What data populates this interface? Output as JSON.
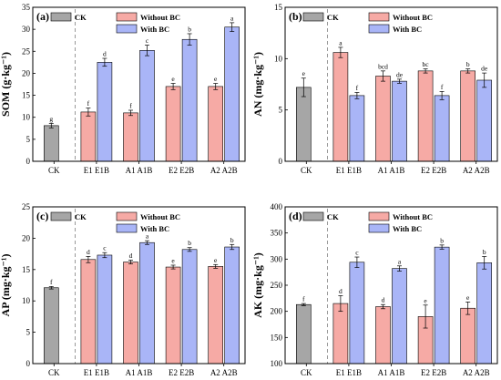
{
  "figure": {
    "colors": {
      "ck": "#a6a6a6",
      "without_bc": "#f6aaa5",
      "with_bc": "#a9b5f7",
      "frame": "#000000",
      "divider": "#808080"
    },
    "legend": {
      "ck": "CK",
      "without_bc": "Without BC",
      "with_bc": "With BC"
    }
  },
  "chart_data": [
    {
      "type": "bar",
      "panel_label": "(a)",
      "ylabel": "SOM (g·kg⁻¹)",
      "ylim": [
        0,
        35
      ],
      "yticks": [
        0,
        5,
        10,
        15,
        20,
        25,
        30,
        35
      ],
      "categories": [
        "CK",
        "E1 E1B",
        "A1 A1B",
        "E2 E2B",
        "A2 A2B"
      ],
      "series": [
        {
          "name": "CK",
          "values": [
            8.1,
            null,
            null,
            null,
            null
          ],
          "errors": [
            0.5,
            null,
            null,
            null,
            null
          ],
          "letters": [
            "g",
            null,
            null,
            null,
            null
          ]
        },
        {
          "name": "Without BC",
          "values": [
            null,
            11.2,
            11.0,
            17.0,
            17.0
          ],
          "errors": [
            null,
            0.9,
            0.6,
            0.7,
            0.7
          ],
          "letters": [
            null,
            "f",
            "f",
            "e",
            "e"
          ]
        },
        {
          "name": "With BC",
          "values": [
            null,
            22.5,
            25.2,
            27.7,
            30.5
          ],
          "errors": [
            null,
            0.9,
            1.2,
            1.3,
            1.0
          ],
          "letters": [
            null,
            "d",
            "c",
            "b",
            "a"
          ]
        }
      ]
    },
    {
      "type": "bar",
      "panel_label": "(b)",
      "ylabel": "AN (mg·kg⁻¹)",
      "ylim": [
        0,
        15
      ],
      "yticks": [
        0,
        5,
        10,
        15
      ],
      "categories": [
        "CK",
        "E1 E1B",
        "A1 A1B",
        "E2 E2B",
        "A2 A2B"
      ],
      "series": [
        {
          "name": "CK",
          "values": [
            7.2,
            null,
            null,
            null,
            null
          ],
          "errors": [
            0.9,
            null,
            null,
            null,
            null
          ],
          "letters": [
            "e",
            null,
            null,
            null,
            null
          ]
        },
        {
          "name": "Without BC",
          "values": [
            null,
            10.6,
            8.3,
            8.8,
            8.8
          ],
          "errors": [
            null,
            0.5,
            0.5,
            0.2,
            0.2
          ],
          "letters": [
            null,
            "a",
            "bcd",
            "bc",
            "b"
          ]
        },
        {
          "name": "With BC",
          "values": [
            null,
            6.4,
            7.8,
            6.4,
            7.9
          ],
          "errors": [
            null,
            0.3,
            0.2,
            0.4,
            0.7
          ],
          "letters": [
            null,
            "f",
            "de",
            "f",
            "de"
          ]
        }
      ]
    },
    {
      "type": "bar",
      "panel_label": "(c)",
      "ylabel": "AP (mg·kg⁻¹)",
      "ylim": [
        0,
        25
      ],
      "yticks": [
        0,
        5,
        10,
        15,
        20,
        25
      ],
      "categories": [
        "CK",
        "E1 E1B",
        "A1 A1B",
        "E2 E2B",
        "A2 A2B"
      ],
      "series": [
        {
          "name": "CK",
          "values": [
            12.1,
            null,
            null,
            null,
            null
          ],
          "errors": [
            0.2,
            null,
            null,
            null,
            null
          ],
          "letters": [
            "f",
            null,
            null,
            null,
            null
          ]
        },
        {
          "name": "Without BC",
          "values": [
            null,
            16.6,
            16.2,
            15.4,
            15.5
          ],
          "errors": [
            null,
            0.5,
            0.3,
            0.3,
            0.3
          ],
          "letters": [
            null,
            "d",
            "d",
            "e",
            "e"
          ]
        },
        {
          "name": "With BC",
          "values": [
            null,
            17.3,
            19.3,
            18.2,
            18.6
          ],
          "errors": [
            null,
            0.4,
            0.3,
            0.3,
            0.4
          ],
          "letters": [
            null,
            "c",
            "a",
            "b",
            "b"
          ]
        }
      ]
    },
    {
      "type": "bar",
      "panel_label": "(d)",
      "ylabel": "AK (mg·kg⁻¹)",
      "ylim": [
        100,
        400
      ],
      "yticks": [
        100,
        150,
        200,
        250,
        300,
        350,
        400
      ],
      "categories": [
        "CK",
        "E1 E1B",
        "A1 A1B",
        "E2 E2B",
        "A2 A2B"
      ],
      "series": [
        {
          "name": "CK",
          "values": [
            213,
            null,
            null,
            null,
            null
          ],
          "errors": [
            2,
            null,
            null,
            null,
            null
          ],
          "letters": [
            "f",
            null,
            null,
            null,
            null
          ]
        },
        {
          "name": "Without BC",
          "values": [
            null,
            215,
            209,
            190,
            206
          ],
          "errors": [
            null,
            15,
            4,
            22,
            12
          ],
          "letters": [
            null,
            "d",
            "d",
            "e",
            "e"
          ]
        },
        {
          "name": "With BC",
          "values": [
            null,
            294,
            282,
            323,
            293
          ],
          "errors": [
            null,
            10,
            5,
            4,
            12
          ],
          "letters": [
            null,
            "c",
            "a",
            "b",
            "b"
          ]
        }
      ]
    }
  ]
}
